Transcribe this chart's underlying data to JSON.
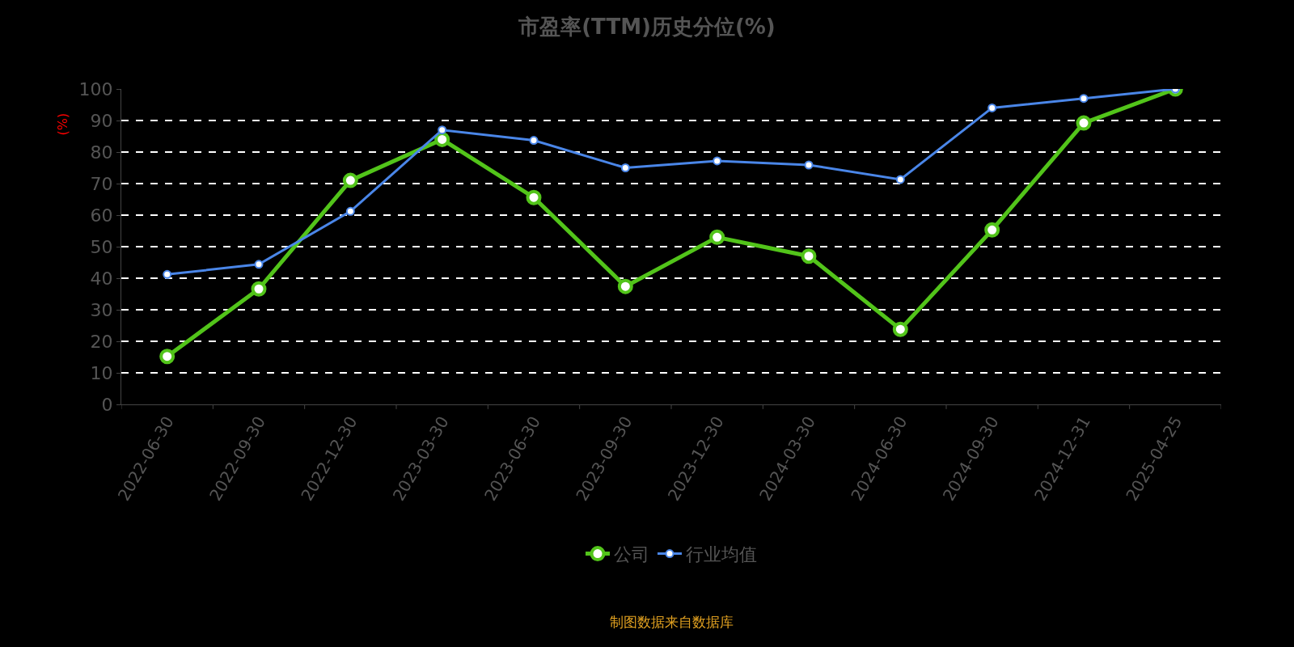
{
  "chart_data": {
    "type": "line",
    "title": "市盈率(TTM)历史分位(%)",
    "ylabel": "(%)",
    "categories": [
      "2022-06-30",
      "2022-09-30",
      "2022-12-30",
      "2023-03-30",
      "2023-06-30",
      "2023-09-30",
      "2023-12-30",
      "2024-03-30",
      "2024-06-30",
      "2024-09-30",
      "2024-12-31",
      "2025-04-25"
    ],
    "series": [
      {
        "name": "公司",
        "color": "#52c41a",
        "values": [
          15.2,
          36.6,
          71,
          84,
          65.6,
          37.4,
          53,
          47,
          23.8,
          55.3,
          89.2,
          100
        ]
      },
      {
        "name": "行业均值",
        "color": "#4a86e8",
        "values": [
          41.2,
          44.4,
          61.2,
          87,
          83.7,
          75,
          77.2,
          75.9,
          71.3,
          94,
          97,
          100
        ]
      }
    ],
    "ylim": [
      0,
      100
    ],
    "yticks": [
      0,
      10,
      20,
      30,
      40,
      50,
      60,
      70,
      80,
      90,
      100
    ],
    "grid": "y",
    "legend": "bottom",
    "marker": "circle",
    "line_style": "solid",
    "annotations": [
      "制图数据来自数据库"
    ]
  }
}
